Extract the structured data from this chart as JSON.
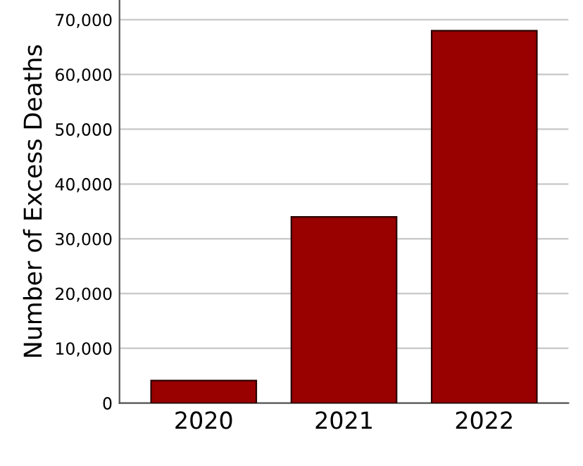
{
  "chart_data": {
    "type": "bar",
    "ylabel": "Number of Excess Deaths",
    "categories": [
      "2020",
      "2021",
      "2022"
    ],
    "values": [
      4100,
      34000,
      68000
    ],
    "color": "#990000",
    "ylim": [
      0,
      73600
    ],
    "yticks": [
      {
        "value": 0,
        "label": "0"
      },
      {
        "value": 10000,
        "label": "10,000"
      },
      {
        "value": 20000,
        "label": "20,000"
      },
      {
        "value": 30000,
        "label": "30,000"
      },
      {
        "value": 40000,
        "label": "40,000"
      },
      {
        "value": 50000,
        "label": "50,000"
      },
      {
        "value": 60000,
        "label": "60,000"
      },
      {
        "value": 70000,
        "label": "70,000"
      }
    ],
    "grid": "y"
  }
}
